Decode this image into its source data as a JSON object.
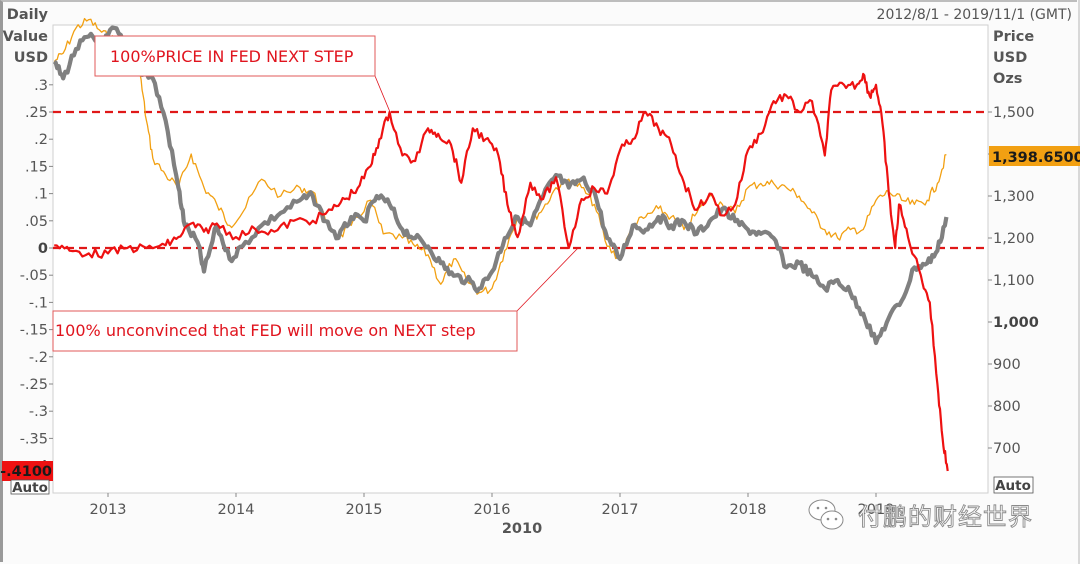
{
  "chart_data": {
    "type": "line",
    "date_range_label": "2012/8/1 - 2019/11/1 (GMT)",
    "xlabel": "2010",
    "x_ticks": [
      "2013",
      "2014",
      "2015",
      "2016",
      "2017",
      "2018",
      "2019"
    ],
    "x_range": [
      2012.58,
      2019.84
    ],
    "left_axis": {
      "title": [
        "Daily",
        "Value",
        "USD"
      ],
      "ticks": [
        ".3",
        ".25",
        ".2",
        ".15",
        ".1",
        ".05",
        "0",
        "-.05",
        "-.1",
        "-.15",
        "-.2",
        "-.25",
        "-.3",
        "-.35",
        "-.4"
      ],
      "tick_values": [
        0.3,
        0.25,
        0.2,
        0.15,
        0.1,
        0.05,
        0,
        -0.05,
        -0.1,
        -0.15,
        -0.2,
        -0.25,
        -0.3,
        -0.35,
        -0.4
      ],
      "bold_tick": "0",
      "range": [
        -0.45,
        0.41
      ],
      "current_value_label": "-.4100",
      "current_value_color": "#ee1111",
      "scale_mode": "Auto"
    },
    "right_axis": {
      "title": [
        "Price",
        "USD",
        "Ozs"
      ],
      "ticks": [
        "1,500",
        "1,400",
        "1,300",
        "1,200",
        "1,100",
        "1,000",
        "900",
        "800",
        "700"
      ],
      "tick_values": [
        1500,
        1400,
        1300,
        1200,
        1100,
        1000,
        900,
        800,
        700
      ],
      "bold_tick": "1,000",
      "range": [
        620,
        1710
      ],
      "current_value_label": "1,398.6500",
      "current_value_color": "#f2a012",
      "scale_mode": "Auto"
    },
    "reference_lines": [
      {
        "axis": "left",
        "value": 0.25,
        "color": "#e01818",
        "style": "dashed"
      },
      {
        "axis": "left",
        "value": 0,
        "color": "#e01818",
        "style": "dashed"
      }
    ],
    "series": [
      {
        "name": "Daily value (left axis)",
        "axis": "left",
        "color": "#ee1111",
        "points": [
          [
            2012.58,
            0.005
          ],
          [
            2012.7,
            -0.005
          ],
          [
            2012.85,
            -0.01
          ],
          [
            2013.0,
            -0.01
          ],
          [
            2013.15,
            0.0
          ],
          [
            2013.3,
            0.0
          ],
          [
            2013.45,
            0.005
          ],
          [
            2013.55,
            0.02
          ],
          [
            2013.65,
            0.045
          ],
          [
            2013.75,
            0.03
          ],
          [
            2013.85,
            0.045
          ],
          [
            2014.0,
            0.02
          ],
          [
            2014.15,
            0.035
          ],
          [
            2014.3,
            0.03
          ],
          [
            2014.45,
            0.05
          ],
          [
            2014.6,
            0.05
          ],
          [
            2014.75,
            0.07
          ],
          [
            2014.85,
            0.09
          ],
          [
            2014.95,
            0.11
          ],
          [
            2015.05,
            0.15
          ],
          [
            2015.12,
            0.2
          ],
          [
            2015.2,
            0.25
          ],
          [
            2015.3,
            0.17
          ],
          [
            2015.4,
            0.16
          ],
          [
            2015.5,
            0.22
          ],
          [
            2015.58,
            0.21
          ],
          [
            2015.68,
            0.19
          ],
          [
            2015.76,
            0.12
          ],
          [
            2015.85,
            0.22
          ],
          [
            2015.95,
            0.2
          ],
          [
            2016.05,
            0.17
          ],
          [
            2016.12,
            0.08
          ],
          [
            2016.2,
            0.02
          ],
          [
            2016.3,
            0.12
          ],
          [
            2016.4,
            0.09
          ],
          [
            2016.5,
            0.13
          ],
          [
            2016.6,
            0.0
          ],
          [
            2016.7,
            0.09
          ],
          [
            2016.8,
            0.11
          ],
          [
            2016.9,
            0.1
          ],
          [
            2017.0,
            0.18
          ],
          [
            2017.1,
            0.2
          ],
          [
            2017.2,
            0.25
          ],
          [
            2017.3,
            0.22
          ],
          [
            2017.4,
            0.19
          ],
          [
            2017.5,
            0.12
          ],
          [
            2017.6,
            0.07
          ],
          [
            2017.7,
            0.1
          ],
          [
            2017.8,
            0.06
          ],
          [
            2017.9,
            0.08
          ],
          [
            2018.0,
            0.18
          ],
          [
            2018.1,
            0.21
          ],
          [
            2018.2,
            0.27
          ],
          [
            2018.3,
            0.28
          ],
          [
            2018.4,
            0.25
          ],
          [
            2018.5,
            0.27
          ],
          [
            2018.6,
            0.17
          ],
          [
            2018.65,
            0.29
          ],
          [
            2018.75,
            0.3
          ],
          [
            2018.85,
            0.3
          ],
          [
            2018.9,
            0.32
          ],
          [
            2018.95,
            0.28
          ],
          [
            2019.0,
            0.3
          ],
          [
            2019.05,
            0.23
          ],
          [
            2019.1,
            0.1
          ],
          [
            2019.15,
            0.0
          ],
          [
            2019.18,
            0.08
          ],
          [
            2019.25,
            0.02
          ],
          [
            2019.35,
            -0.05
          ],
          [
            2019.42,
            -0.1
          ],
          [
            2019.48,
            -0.25
          ],
          [
            2019.52,
            -0.35
          ],
          [
            2019.56,
            -0.41
          ]
        ]
      },
      {
        "name": "Gold price (right axis)",
        "axis": "right",
        "color": "#f2a012",
        "points": [
          [
            2012.58,
            1620
          ],
          [
            2012.65,
            1640
          ],
          [
            2012.75,
            1700
          ],
          [
            2012.85,
            1720
          ],
          [
            2012.95,
            1690
          ],
          [
            2013.05,
            1670
          ],
          [
            2013.15,
            1620
          ],
          [
            2013.25,
            1590
          ],
          [
            2013.3,
            1480
          ],
          [
            2013.35,
            1390
          ],
          [
            2013.45,
            1350
          ],
          [
            2013.55,
            1320
          ],
          [
            2013.65,
            1400
          ],
          [
            2013.75,
            1320
          ],
          [
            2013.85,
            1280
          ],
          [
            2013.95,
            1230
          ],
          [
            2014.05,
            1260
          ],
          [
            2014.2,
            1340
          ],
          [
            2014.35,
            1300
          ],
          [
            2014.5,
            1320
          ],
          [
            2014.6,
            1310
          ],
          [
            2014.7,
            1240
          ],
          [
            2014.8,
            1200
          ],
          [
            2014.9,
            1230
          ],
          [
            2015.05,
            1290
          ],
          [
            2015.15,
            1210
          ],
          [
            2015.3,
            1200
          ],
          [
            2015.4,
            1180
          ],
          [
            2015.5,
            1160
          ],
          [
            2015.6,
            1090
          ],
          [
            2015.7,
            1150
          ],
          [
            2015.8,
            1100
          ],
          [
            2015.9,
            1070
          ],
          [
            2016.0,
            1080
          ],
          [
            2016.1,
            1170
          ],
          [
            2016.2,
            1250
          ],
          [
            2016.3,
            1240
          ],
          [
            2016.4,
            1270
          ],
          [
            2016.5,
            1320
          ],
          [
            2016.6,
            1340
          ],
          [
            2016.7,
            1320
          ],
          [
            2016.8,
            1280
          ],
          [
            2016.9,
            1180
          ],
          [
            2017.0,
            1150
          ],
          [
            2017.1,
            1230
          ],
          [
            2017.2,
            1250
          ],
          [
            2017.3,
            1270
          ],
          [
            2017.4,
            1250
          ],
          [
            2017.5,
            1220
          ],
          [
            2017.6,
            1260
          ],
          [
            2017.7,
            1300
          ],
          [
            2017.8,
            1280
          ],
          [
            2017.9,
            1260
          ],
          [
            2018.0,
            1320
          ],
          [
            2018.1,
            1330
          ],
          [
            2018.2,
            1330
          ],
          [
            2018.3,
            1320
          ],
          [
            2018.4,
            1300
          ],
          [
            2018.5,
            1260
          ],
          [
            2018.6,
            1220
          ],
          [
            2018.7,
            1200
          ],
          [
            2018.8,
            1220
          ],
          [
            2018.9,
            1220
          ],
          [
            2019.0,
            1290
          ],
          [
            2019.1,
            1310
          ],
          [
            2019.2,
            1290
          ],
          [
            2019.3,
            1280
          ],
          [
            2019.4,
            1290
          ],
          [
            2019.48,
            1330
          ],
          [
            2019.55,
            1398.65
          ]
        ]
      },
      {
        "name": "Gold price line 2 (right axis)",
        "axis": "right",
        "color": "#808080",
        "points": [
          [
            2012.58,
            1620
          ],
          [
            2012.65,
            1580
          ],
          [
            2012.75,
            1650
          ],
          [
            2012.85,
            1680
          ],
          [
            2012.95,
            1660
          ],
          [
            2013.05,
            1700
          ],
          [
            2013.15,
            1650
          ],
          [
            2013.25,
            1600
          ],
          [
            2013.35,
            1580
          ],
          [
            2013.45,
            1480
          ],
          [
            2013.55,
            1320
          ],
          [
            2013.6,
            1230
          ],
          [
            2013.7,
            1190
          ],
          [
            2013.75,
            1120
          ],
          [
            2013.85,
            1230
          ],
          [
            2013.95,
            1150
          ],
          [
            2014.05,
            1180
          ],
          [
            2014.2,
            1230
          ],
          [
            2014.35,
            1260
          ],
          [
            2014.5,
            1290
          ],
          [
            2014.6,
            1300
          ],
          [
            2014.7,
            1240
          ],
          [
            2014.8,
            1200
          ],
          [
            2014.9,
            1250
          ],
          [
            2015.0,
            1240
          ],
          [
            2015.1,
            1300
          ],
          [
            2015.2,
            1280
          ],
          [
            2015.3,
            1220
          ],
          [
            2015.4,
            1200
          ],
          [
            2015.5,
            1180
          ],
          [
            2015.6,
            1140
          ],
          [
            2015.7,
            1110
          ],
          [
            2015.8,
            1100
          ],
          [
            2015.9,
            1080
          ],
          [
            2016.0,
            1120
          ],
          [
            2016.1,
            1200
          ],
          [
            2016.2,
            1250
          ],
          [
            2016.3,
            1230
          ],
          [
            2016.4,
            1300
          ],
          [
            2016.5,
            1350
          ],
          [
            2016.6,
            1320
          ],
          [
            2016.7,
            1340
          ],
          [
            2016.8,
            1310
          ],
          [
            2016.9,
            1200
          ],
          [
            2017.0,
            1150
          ],
          [
            2017.1,
            1230
          ],
          [
            2017.2,
            1220
          ],
          [
            2017.3,
            1250
          ],
          [
            2017.4,
            1230
          ],
          [
            2017.5,
            1240
          ],
          [
            2017.6,
            1210
          ],
          [
            2017.7,
            1240
          ],
          [
            2017.8,
            1270
          ],
          [
            2017.9,
            1240
          ],
          [
            2018.0,
            1220
          ],
          [
            2018.1,
            1210
          ],
          [
            2018.2,
            1200
          ],
          [
            2018.3,
            1130
          ],
          [
            2018.4,
            1140
          ],
          [
            2018.5,
            1110
          ],
          [
            2018.6,
            1080
          ],
          [
            2018.7,
            1100
          ],
          [
            2018.8,
            1070
          ],
          [
            2018.9,
            1020
          ],
          [
            2019.0,
            950
          ],
          [
            2019.1,
            1010
          ],
          [
            2019.2,
            1050
          ],
          [
            2019.3,
            1130
          ],
          [
            2019.4,
            1140
          ],
          [
            2019.48,
            1170
          ],
          [
            2019.55,
            1250
          ]
        ]
      }
    ],
    "annotations": [
      {
        "text": "100%PRICE IN FED NEXT STEP",
        "points_to": {
          "x": 2015.2,
          "y": 0.25
        },
        "color": "#e0141e"
      },
      {
        "text": "100%  unconvinced that FED will move on NEXT step",
        "points_to": {
          "x": 2016.6,
          "y": 0.0
        },
        "color": "#e0141e"
      }
    ]
  },
  "watermark": {
    "icon": "wechat-icon",
    "text": "付鹏的财经世界"
  }
}
